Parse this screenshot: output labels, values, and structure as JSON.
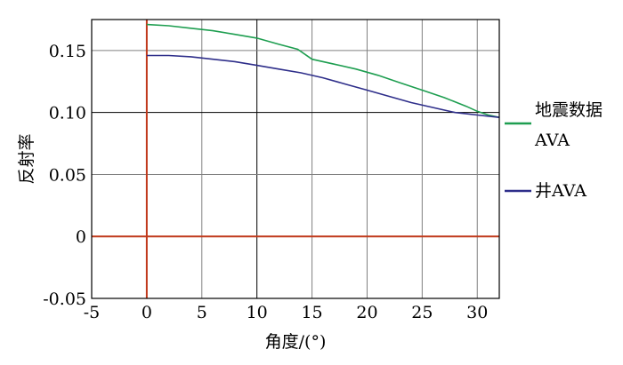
{
  "chart_data": {
    "type": "line",
    "xlabel": "角度/(°)",
    "ylabel": "反射率",
    "xlim": [
      -5,
      32
    ],
    "ylim": [
      -0.05,
      0.175
    ],
    "xticks": [
      -5,
      0,
      5,
      10,
      15,
      20,
      25,
      30
    ],
    "xtick_labels": [
      "-5",
      "0",
      "5",
      "10",
      "15",
      "20",
      "25",
      "30"
    ],
    "yticks": [
      -0.05,
      0,
      0.05,
      0.1,
      0.15
    ],
    "ytick_labels": [
      "-0.05",
      "0",
      "0.05",
      "0.10",
      "0.15"
    ],
    "grid": true,
    "legend_position": "right",
    "reference_lines": {
      "x_zero_color": "#c0391b",
      "y_zero_color": "#c0391b"
    },
    "series": [
      {
        "name": "地震数据AVA",
        "legend_lines": [
          "地震数据",
          "AVA"
        ],
        "color": "#1e9e50",
        "x": [
          0,
          2,
          4,
          6,
          8,
          10,
          12,
          13.7,
          15,
          17,
          19,
          21,
          23,
          25,
          27,
          29,
          30,
          31,
          32
        ],
        "y": [
          0.171,
          0.17,
          0.168,
          0.166,
          0.163,
          0.16,
          0.155,
          0.151,
          0.143,
          0.139,
          0.135,
          0.13,
          0.124,
          0.118,
          0.112,
          0.105,
          0.101,
          0.098,
          0.096
        ]
      },
      {
        "name": "井AVA",
        "legend_lines": [
          "井AVA"
        ],
        "color": "#2e2e8a",
        "x": [
          0,
          2,
          4,
          6,
          8,
          10,
          12,
          14,
          16,
          18,
          20,
          22,
          24,
          26,
          28,
          30,
          32
        ],
        "y": [
          0.146,
          0.146,
          0.145,
          0.143,
          0.141,
          0.138,
          0.135,
          0.132,
          0.128,
          0.123,
          0.118,
          0.113,
          0.108,
          0.104,
          0.1,
          0.098,
          0.096
        ]
      }
    ]
  }
}
